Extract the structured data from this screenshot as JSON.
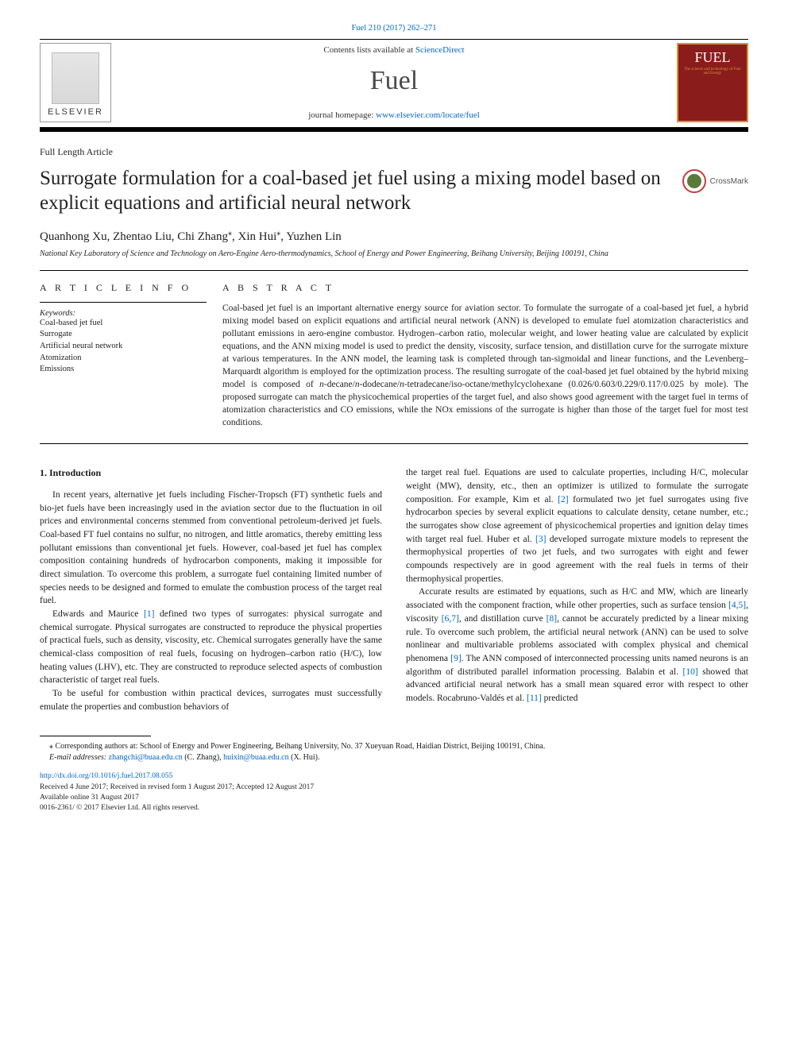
{
  "citation": "Fuel 210 (2017) 262–271",
  "masthead": {
    "contents_prefix": "Contents lists available at ",
    "contents_link": "ScienceDirect",
    "journal": "Fuel",
    "homepage_prefix": "journal homepage: ",
    "homepage_url": "www.elsevier.com/locate/fuel",
    "elsevier_label": "ELSEVIER",
    "fuel_logo_main": "FUEL",
    "fuel_logo_sub": "The science and technology of Fuel and Energy"
  },
  "article_type": "Full Length Article",
  "title": "Surrogate formulation for a coal-based jet fuel using a mixing model based on explicit equations and artificial neural network",
  "crossmark_label": "CrossMark",
  "authors_html": "Quanhong Xu, Zhentao Liu, Chi Zhang*, Xin Hui*, Yuzhen Lin",
  "affiliation": "National Key Laboratory of Science and Technology on Aero-Engine Aero-thermodynamics, School of Energy and Power Engineering, Beihang University, Beijing 100191, China",
  "ai_heading": "A R T I C L E   I N F O",
  "keywords_label": "Keywords:",
  "keywords": [
    "Coal-based jet fuel",
    "Surrogate",
    "Artificial neural network",
    "Atomization",
    "Emissions"
  ],
  "abs_heading": "A B S T R A C T",
  "abstract": "Coal-based jet fuel is an important alternative energy source for aviation sector. To formulate the surrogate of a coal-based jet fuel, a hybrid mixing model based on explicit equations and artificial neural network (ANN) is developed to emulate fuel atomization characteristics and pollutant emissions in aero-engine combustor. Hydrogen–carbon ratio, molecular weight, and lower heating value are calculated by explicit equations, and the ANN mixing model is used to predict the density, viscosity, surface tension, and distillation curve for the surrogate mixture at various temperatures. In the ANN model, the learning task is completed through tan-sigmoidal and linear functions, and the Levenberg–Marquardt algorithm is employed for the optimization process. The resulting surrogate of the coal-based jet fuel obtained by the hybrid mixing model is composed of n-decane/n-dodecane/n-tetradecane/iso-octane/methylcyclohexane (0.026/0.603/0.229/0.117/0.025 by mole). The proposed surrogate can match the physicochemical properties of the target fuel, and also shows good agreement with the target fuel in terms of atomization characteristics and CO emissions, while the NOx emissions of the surrogate is higher than those of the target fuel for most test conditions.",
  "sec1_head": "1. Introduction",
  "col1": {
    "p1": "In recent years, alternative jet fuels including Fischer-Tropsch (FT) synthetic fuels and bio-jet fuels have been increasingly used in the aviation sector due to the fluctuation in oil prices and environmental concerns stemmed from conventional petroleum-derived jet fuels. Coal-based FT fuel contains no sulfur, no nitrogen, and little aromatics, thereby emitting less pollutant emissions than conventional jet fuels. However, coal-based jet fuel has complex composition containing hundreds of hydrocarbon components, making it impossible for direct simulation. To overcome this problem, a surrogate fuel containing limited number of species needs to be designed and formed to emulate the combustion process of the target real fuel.",
    "p2a": "Edwards and Maurice ",
    "p2_ref1": "[1]",
    "p2b": " defined two types of surrogates: physical surrogate and chemical surrogate. Physical surrogates are constructed to reproduce the physical properties of practical fuels, such as density, viscosity, etc. Chemical surrogates generally have the same chemical-class composition of real fuels, focusing on hydrogen–carbon ratio (H/C), low heating values (LHV), etc. They are constructed to reproduce selected aspects of combustion characteristic of target real fuels.",
    "p3": "To be useful for combustion within practical devices, surrogates must successfully emulate the properties and combustion behaviors of"
  },
  "col2": {
    "p1a": "the target real fuel. Equations are used to calculate properties, including H/C, molecular weight (MW), density, etc., then an optimizer is utilized to formulate the surrogate composition. For example, Kim et al. ",
    "p1_ref2": "[2]",
    "p1b": " formulated two jet fuel surrogates using five hydrocarbon species by several explicit equations to calculate density, cetane number, etc.; the surrogates show close agreement of physicochemical properties and ignition delay times with target real fuel. Huber et al. ",
    "p1_ref3": "[3]",
    "p1c": " developed surrogate mixture models to represent the thermophysical properties of two jet fuels, and two surrogates with eight and fewer compounds respectively are in good agreement with the real fuels in terms of their thermophysical properties.",
    "p2a": "Accurate results are estimated by equations, such as H/C and MW, which are linearly associated with the component fraction, while other properties, such as surface tension ",
    "p2_ref45": "[4,5]",
    "p2b": ", viscosity ",
    "p2_ref67": "[6,7]",
    "p2c": ", and distillation curve ",
    "p2_ref8": "[8]",
    "p2d": ", cannot be accurately predicted by a linear mixing rule. To overcome such problem, the artificial neural network (ANN) can be used to solve nonlinear and multivariable problems associated with complex physical and chemical phenomena ",
    "p2_ref9": "[9]",
    "p2e": ". The ANN composed of interconnected processing units named neurons is an algorithm of distributed parallel information processing. Balabin et al. ",
    "p2_ref10": "[10]",
    "p2f": " showed that advanced artificial neural network has a small mean squared error with respect to other models. Rocabruno-Valdés et al. ",
    "p2_ref11": "[11]",
    "p2g": " predicted"
  },
  "footnote": {
    "star": "⁎",
    "corr": " Corresponding authors at: School of Energy and Power Engineering, Beihang University, No. 37 Xueyuan Road, Haidian District, Beijing 100191, China.",
    "email_label": "E-mail addresses: ",
    "email1": "zhangchi@buaa.edu.cn",
    "email1_name": " (C. Zhang), ",
    "email2": "huixin@buaa.edu.cn",
    "email2_name": " (X. Hui)."
  },
  "doi": {
    "url": "http://dx.doi.org/10.1016/j.fuel.2017.08.055",
    "received": "Received 4 June 2017; Received in revised form 1 August 2017; Accepted 12 August 2017",
    "available": "Available online 31 August 2017",
    "copyright": "0016-2361/ © 2017 Elsevier Ltd. All rights reserved."
  },
  "colors": {
    "link": "#0066cc",
    "fuel_bg": "#8a1c1c",
    "fuel_border": "#d9953b",
    "crossmark_ring": "#c83c3c",
    "crossmark_fill": "#5a7a3a"
  }
}
